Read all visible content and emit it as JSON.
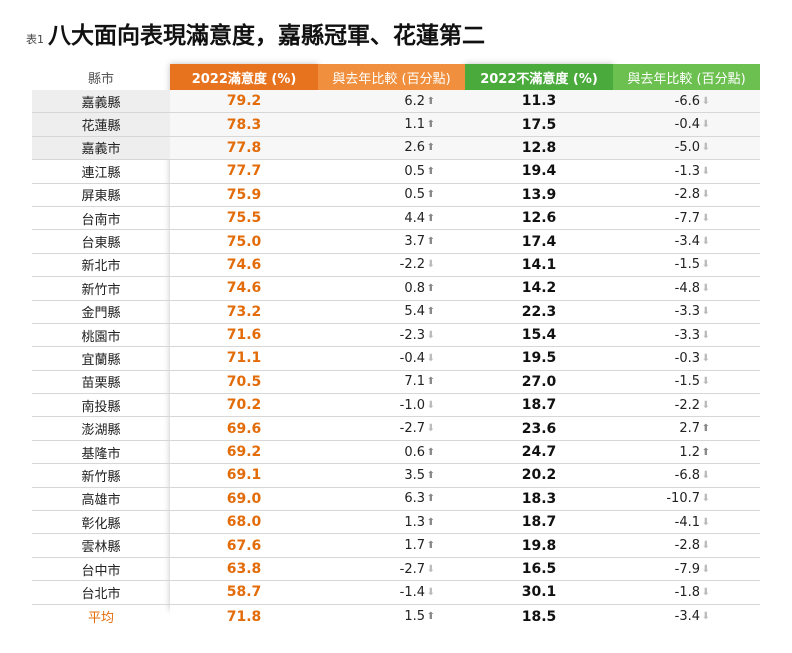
{
  "title_prefix": "表1",
  "title": "八大面向表現滿意度，嘉縣冠軍、花蓮第二",
  "headers": {
    "county": "縣市",
    "satisfaction": "2022滿意度 (%)",
    "sat_change": "與去年比較 (百分點)",
    "dissatisfaction": "2022不滿意度 (%)",
    "dis_change": "與去年比較 (百分點)"
  },
  "colors": {
    "satisfaction": "#e8731e",
    "dissatisfaction": "#4aaa3c"
  },
  "rows": [
    {
      "county": "嘉義縣",
      "sat": "79.2",
      "sat_change": "6.2",
      "sat_dir": "up",
      "dis": "11.3",
      "dis_change": "-6.6",
      "dis_dir": "down"
    },
    {
      "county": "花蓮縣",
      "sat": "78.3",
      "sat_change": "1.1",
      "sat_dir": "up",
      "dis": "17.5",
      "dis_change": "-0.4",
      "dis_dir": "down"
    },
    {
      "county": "嘉義市",
      "sat": "77.8",
      "sat_change": "2.6",
      "sat_dir": "up",
      "dis": "12.8",
      "dis_change": "-5.0",
      "dis_dir": "down"
    },
    {
      "county": "連江縣",
      "sat": "77.7",
      "sat_change": "0.5",
      "sat_dir": "up",
      "dis": "19.4",
      "dis_change": "-1.3",
      "dis_dir": "down"
    },
    {
      "county": "屏東縣",
      "sat": "75.9",
      "sat_change": "0.5",
      "sat_dir": "up",
      "dis": "13.9",
      "dis_change": "-2.8",
      "dis_dir": "down"
    },
    {
      "county": "台南市",
      "sat": "75.5",
      "sat_change": "4.4",
      "sat_dir": "up",
      "dis": "12.6",
      "dis_change": "-7.7",
      "dis_dir": "down"
    },
    {
      "county": "台東縣",
      "sat": "75.0",
      "sat_change": "3.7",
      "sat_dir": "up",
      "dis": "17.4",
      "dis_change": "-3.4",
      "dis_dir": "down"
    },
    {
      "county": "新北市",
      "sat": "74.6",
      "sat_change": "-2.2",
      "sat_dir": "down",
      "dis": "14.1",
      "dis_change": "-1.5",
      "dis_dir": "down"
    },
    {
      "county": "新竹市",
      "sat": "74.6",
      "sat_change": "0.8",
      "sat_dir": "up",
      "dis": "14.2",
      "dis_change": "-4.8",
      "dis_dir": "down"
    },
    {
      "county": "金門縣",
      "sat": "73.2",
      "sat_change": "5.4",
      "sat_dir": "up",
      "dis": "22.3",
      "dis_change": "-3.3",
      "dis_dir": "down"
    },
    {
      "county": "桃園市",
      "sat": "71.6",
      "sat_change": "-2.3",
      "sat_dir": "down",
      "dis": "15.4",
      "dis_change": "-3.3",
      "dis_dir": "down"
    },
    {
      "county": "宜蘭縣",
      "sat": "71.1",
      "sat_change": "-0.4",
      "sat_dir": "down",
      "dis": "19.5",
      "dis_change": "-0.3",
      "dis_dir": "down"
    },
    {
      "county": "苗栗縣",
      "sat": "70.5",
      "sat_change": "7.1",
      "sat_dir": "up",
      "dis": "27.0",
      "dis_change": "-1.5",
      "dis_dir": "down"
    },
    {
      "county": "南投縣",
      "sat": "70.2",
      "sat_change": "-1.0",
      "sat_dir": "down",
      "dis": "18.7",
      "dis_change": "-2.2",
      "dis_dir": "down"
    },
    {
      "county": "澎湖縣",
      "sat": "69.6",
      "sat_change": "-2.7",
      "sat_dir": "down",
      "dis": "23.6",
      "dis_change": "2.7",
      "dis_dir": "up"
    },
    {
      "county": "基隆市",
      "sat": "69.2",
      "sat_change": "0.6",
      "sat_dir": "up",
      "dis": "24.7",
      "dis_change": "1.2",
      "dis_dir": "up"
    },
    {
      "county": "新竹縣",
      "sat": "69.1",
      "sat_change": "3.5",
      "sat_dir": "up",
      "dis": "20.2",
      "dis_change": "-6.8",
      "dis_dir": "down"
    },
    {
      "county": "高雄市",
      "sat": "69.0",
      "sat_change": "6.3",
      "sat_dir": "up",
      "dis": "18.3",
      "dis_change": "-10.7",
      "dis_dir": "down"
    },
    {
      "county": "彰化縣",
      "sat": "68.0",
      "sat_change": "1.3",
      "sat_dir": "up",
      "dis": "18.7",
      "dis_change": "-4.1",
      "dis_dir": "down"
    },
    {
      "county": "雲林縣",
      "sat": "67.6",
      "sat_change": "1.7",
      "sat_dir": "up",
      "dis": "19.8",
      "dis_change": "-2.8",
      "dis_dir": "down"
    },
    {
      "county": "台中市",
      "sat": "63.8",
      "sat_change": "-2.7",
      "sat_dir": "down",
      "dis": "16.5",
      "dis_change": "-7.9",
      "dis_dir": "down"
    },
    {
      "county": "台北市",
      "sat": "58.7",
      "sat_change": "-1.4",
      "sat_dir": "down",
      "dis": "30.1",
      "dis_change": "-1.8",
      "dis_dir": "down"
    }
  ],
  "average": {
    "county": "平均",
    "sat": "71.8",
    "sat_change": "1.5",
    "sat_dir": "up",
    "dis": "18.5",
    "dis_change": "-3.4",
    "dis_dir": "down"
  }
}
